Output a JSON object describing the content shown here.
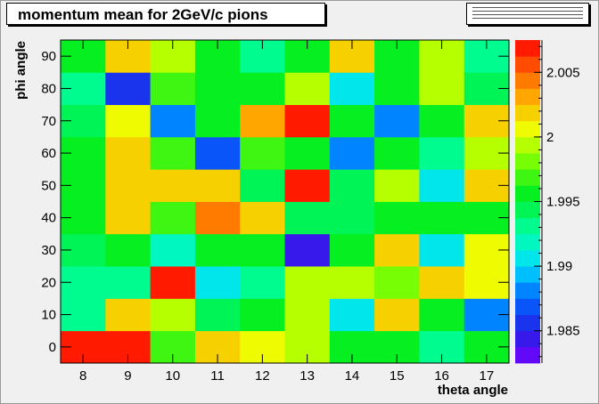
{
  "chart_data": {
    "type": "heatmap",
    "title": "momentum mean for 2GeV/c pions",
    "xlabel": "theta angle",
    "ylabel": "phi angle",
    "x_categories": [
      "8",
      "9",
      "10",
      "11",
      "12",
      "13",
      "14",
      "15",
      "16",
      "17"
    ],
    "y_categories": [
      "0",
      "10",
      "20",
      "30",
      "40",
      "50",
      "60",
      "70",
      "80",
      "90"
    ],
    "xlim": [
      7.5,
      17.5
    ],
    "ylim": [
      -5,
      95
    ],
    "zlim": [
      1.9825,
      2.0075
    ],
    "z_axis_ticks": [
      "1.985",
      "1.99",
      "1.995",
      "2",
      "2.005"
    ],
    "z_axis_tick_values": [
      1.985,
      1.99,
      1.995,
      2.0,
      2.005
    ],
    "x_axis_ticks": [
      "8",
      "9",
      "10",
      "11",
      "12",
      "13",
      "14",
      "15",
      "16",
      "17"
    ],
    "y_axis_ticks": [
      "0",
      "10",
      "20",
      "30",
      "40",
      "50",
      "60",
      "70",
      "80",
      "90"
    ],
    "grid": false,
    "values": [
      [
        2.0073,
        2.0065,
        1.9963,
        2.0013,
        2.0005,
        1.9995,
        1.9962,
        1.995,
        1.993,
        1.996
      ],
      [
        1.9925,
        2.0013,
        1.9995,
        1.9945,
        1.996,
        1.999,
        1.991,
        2.0013,
        1.996,
        1.9875
      ],
      [
        1.9925,
        1.9925,
        2.0065,
        1.9905,
        1.9925,
        1.999,
        1.999,
        1.998,
        2.0013,
        2.0005
      ],
      [
        1.9945,
        1.995,
        1.992,
        1.996,
        1.996,
        1.9838,
        1.9962,
        2.002,
        1.991,
        2.0005
      ],
      [
        1.9962,
        2.0013,
        1.9963,
        2.004,
        2.002,
        1.9945,
        1.9945,
        1.996,
        1.995,
        1.995
      ],
      [
        1.9962,
        2.0013,
        2.0013,
        2.0013,
        1.994,
        2.0065,
        1.9945,
        1.999,
        1.9905,
        2.0013
      ],
      [
        1.9955,
        2.0013,
        1.9963,
        1.987,
        1.9963,
        1.9962,
        1.988,
        1.9962,
        1.993,
        1.999
      ],
      [
        1.9945,
        2.0,
        1.9885,
        1.9962,
        2.0025,
        2.0075,
        1.9962,
        1.9885,
        1.9962,
        2.0013
      ],
      [
        1.9925,
        1.985,
        1.9963,
        1.995,
        1.9962,
        1.999,
        1.991,
        1.9962,
        1.999,
        1.9945
      ],
      [
        1.9962,
        2.0013,
        1.999,
        1.9962,
        1.9935,
        1.9962,
        2.0013,
        1.9962,
        1.999,
        1.9925
      ]
    ]
  }
}
